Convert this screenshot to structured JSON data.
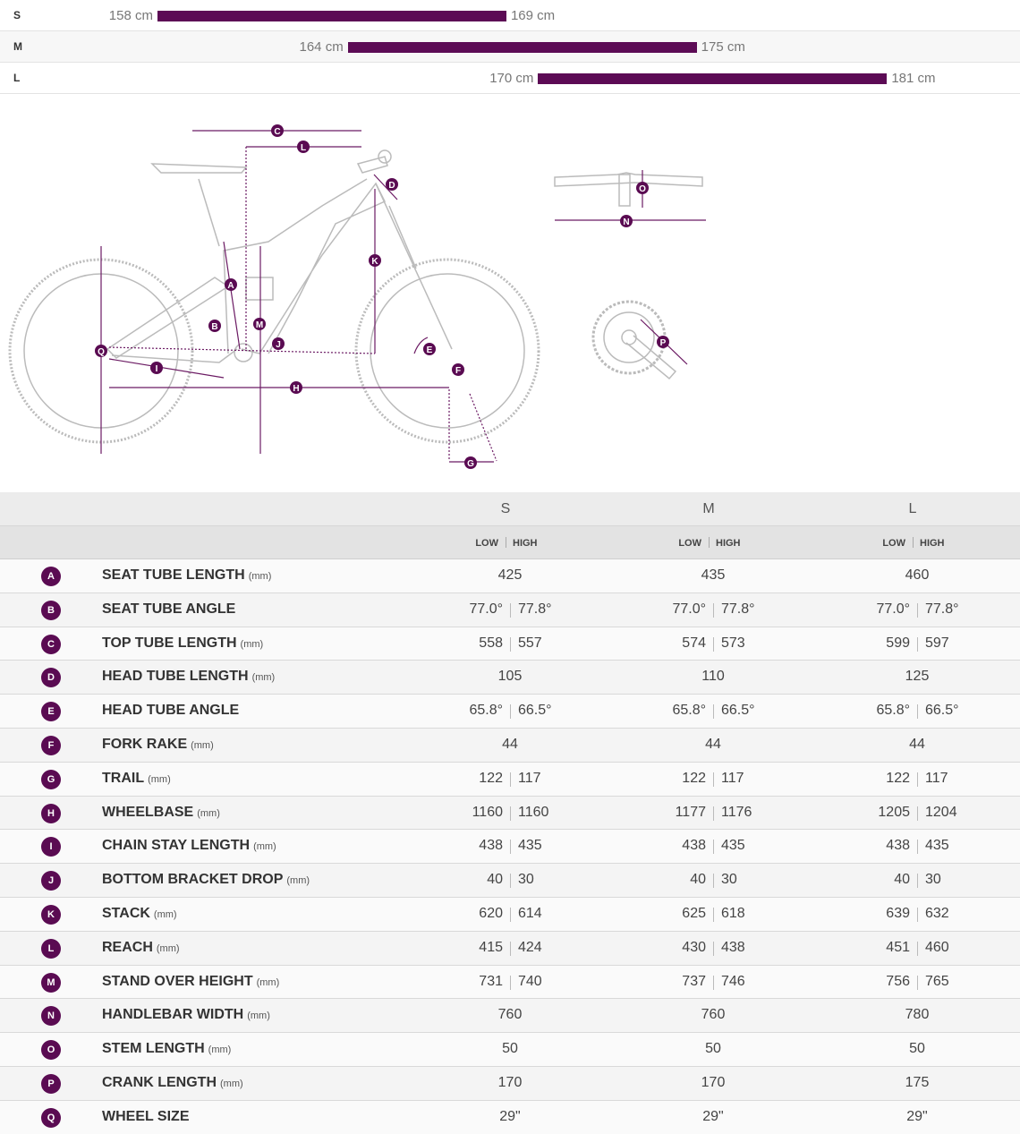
{
  "size_chart": [
    {
      "size": "S",
      "min": {
        "value": 158,
        "label": "158 cm"
      },
      "max": {
        "value": 169,
        "label": "169 cm"
      }
    },
    {
      "size": "M",
      "min": {
        "value": 164,
        "label": "164 cm"
      },
      "max": {
        "value": 175,
        "label": "175 cm"
      }
    },
    {
      "size": "L",
      "min": {
        "value": 170,
        "label": "170 cm"
      },
      "max": {
        "value": 181,
        "label": "181 cm"
      }
    }
  ],
  "geometry": {
    "sizes": [
      "S",
      "M",
      "L"
    ],
    "low": "LOW",
    "high": "HIGH",
    "rows": [
      {
        "letter": "A",
        "name": "SEAT TUBE LENGTH",
        "unit": "(mm)",
        "values": [
          [
            "425"
          ],
          [
            "435"
          ],
          [
            "460"
          ]
        ]
      },
      {
        "letter": "B",
        "name": "SEAT TUBE ANGLE",
        "values": [
          [
            "77.0°",
            "77.8°"
          ],
          [
            "77.0°",
            "77.8°"
          ],
          [
            "77.0°",
            "77.8°"
          ]
        ]
      },
      {
        "letter": "C",
        "name": "TOP TUBE LENGTH",
        "unit": "(mm)",
        "values": [
          [
            "558",
            "557"
          ],
          [
            "574",
            "573"
          ],
          [
            "599",
            "597"
          ]
        ]
      },
      {
        "letter": "D",
        "name": "HEAD TUBE LENGTH",
        "unit": "(mm)",
        "values": [
          [
            "105"
          ],
          [
            "110"
          ],
          [
            "125"
          ]
        ]
      },
      {
        "letter": "E",
        "name": "HEAD TUBE ANGLE",
        "values": [
          [
            "65.8°",
            "66.5°"
          ],
          [
            "65.8°",
            "66.5°"
          ],
          [
            "65.8°",
            "66.5°"
          ]
        ]
      },
      {
        "letter": "F",
        "name": "FORK RAKE",
        "unit": "(mm)",
        "values": [
          [
            "44"
          ],
          [
            "44"
          ],
          [
            "44"
          ]
        ]
      },
      {
        "letter": "G",
        "name": "TRAIL",
        "unit": "(mm)",
        "values": [
          [
            "122",
            "117"
          ],
          [
            "122",
            "117"
          ],
          [
            "122",
            "117"
          ]
        ]
      },
      {
        "letter": "H",
        "name": "WHEELBASE",
        "unit": "(mm)",
        "values": [
          [
            "1160",
            "1160"
          ],
          [
            "1177",
            "1176"
          ],
          [
            "1205",
            "1204"
          ]
        ]
      },
      {
        "letter": "I",
        "name": "CHAIN STAY LENGTH",
        "unit": "(mm)",
        "values": [
          [
            "438",
            "435"
          ],
          [
            "438",
            "435"
          ],
          [
            "438",
            "435"
          ]
        ]
      },
      {
        "letter": "J",
        "name": "BOTTOM BRACKET DROP",
        "unit": "(mm)",
        "values": [
          [
            "40",
            "30"
          ],
          [
            "40",
            "30"
          ],
          [
            "40",
            "30"
          ]
        ]
      },
      {
        "letter": "K",
        "name": "STACK",
        "unit": "(mm)",
        "values": [
          [
            "620",
            "614"
          ],
          [
            "625",
            "618"
          ],
          [
            "639",
            "632"
          ]
        ]
      },
      {
        "letter": "L",
        "name": "REACH",
        "unit": "(mm)",
        "values": [
          [
            "415",
            "424"
          ],
          [
            "430",
            "438"
          ],
          [
            "451",
            "460"
          ]
        ]
      },
      {
        "letter": "M",
        "name": "STAND OVER HEIGHT",
        "unit": "(mm)",
        "values": [
          [
            "731",
            "740"
          ],
          [
            "737",
            "746"
          ],
          [
            "756",
            "765"
          ]
        ]
      },
      {
        "letter": "N",
        "name": "HANDLEBAR WIDTH",
        "unit": "(mm)",
        "values": [
          [
            "760"
          ],
          [
            "760"
          ],
          [
            "780"
          ]
        ]
      },
      {
        "letter": "O",
        "name": "STEM LENGTH",
        "unit": "(mm)",
        "values": [
          [
            "50"
          ],
          [
            "50"
          ],
          [
            "50"
          ]
        ]
      },
      {
        "letter": "P",
        "name": "CRANK LENGTH",
        "unit": "(mm)",
        "values": [
          [
            "170"
          ],
          [
            "170"
          ],
          [
            "175"
          ]
        ]
      },
      {
        "letter": "Q",
        "name": "WHEEL SIZE",
        "values": [
          [
            "29\""
          ],
          [
            "29\""
          ],
          [
            "29\""
          ]
        ]
      }
    ]
  }
}
